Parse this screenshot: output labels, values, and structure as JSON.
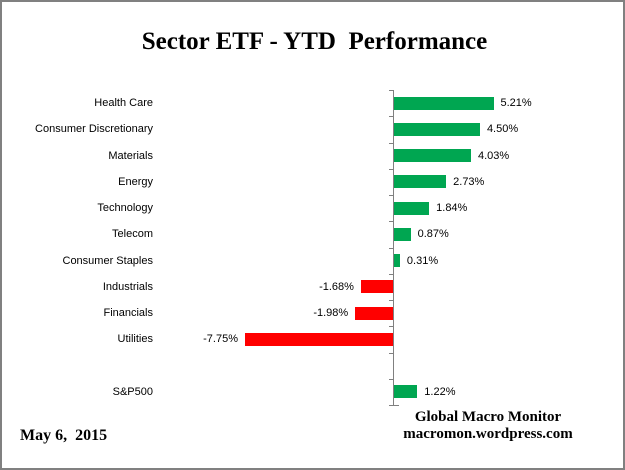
{
  "chart_data": {
    "type": "bar",
    "orientation": "horizontal",
    "title": "Sector ETF - YTD  Performance",
    "categories": [
      "Health Care",
      "Consumer Discretionary",
      "Materials",
      "Energy",
      "Technology",
      "Telecom",
      "Consumer Staples",
      "Industrials",
      "Financials",
      "Utilities",
      "",
      "S&P500"
    ],
    "values": [
      5.21,
      4.5,
      4.03,
      2.73,
      1.84,
      0.87,
      0.31,
      -1.68,
      -1.98,
      -7.75,
      null,
      1.22
    ],
    "value_labels": [
      "5.21%",
      "4.50%",
      "4.03%",
      "2.73%",
      "1.84%",
      "0.87%",
      "0.31%",
      "-1.68%",
      "-1.98%",
      "-7.75%",
      null,
      "1.22%"
    ],
    "xlabel": "",
    "ylabel": "",
    "grid": false,
    "value_axis_labels_visible": false,
    "colors": {
      "positive": "#00A651",
      "negative": "#FF0000",
      "axis": "#808080"
    }
  },
  "footer": {
    "date": "May 6,  2015",
    "credit_line1": "Global Macro Monitor",
    "credit_line2": "macromon.wordpress.com"
  }
}
